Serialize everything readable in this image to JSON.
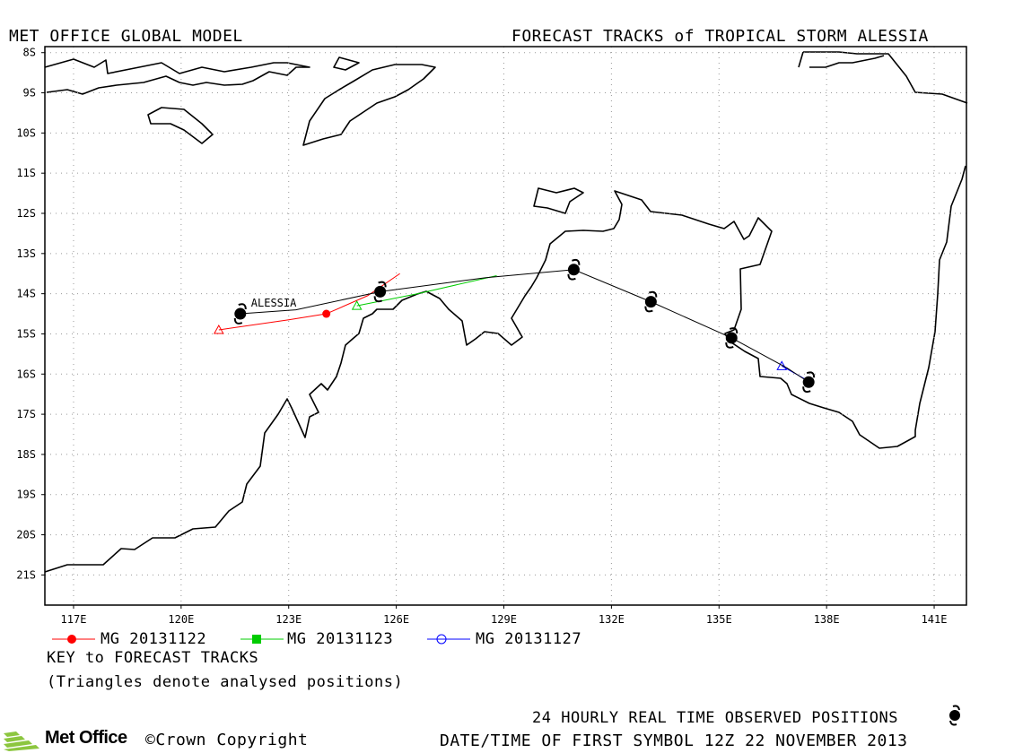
{
  "header": {
    "model_title": "MET OFFICE GLOBAL MODEL",
    "forecast_title": "FORECAST TRACKS of TROPICAL STORM ALESSIA"
  },
  "map": {
    "lon_range": [
      116.2,
      141.9
    ],
    "lat_range": [
      -21.75,
      -7.85
    ],
    "lat_ticks": [
      "8S",
      "9S",
      "10S",
      "11S",
      "12S",
      "13S",
      "14S",
      "15S",
      "16S",
      "17S",
      "18S",
      "19S",
      "20S",
      "21S"
    ],
    "lat_values": [
      -8,
      -9,
      -10,
      -11,
      -12,
      -13,
      -14,
      -15,
      -16,
      -17,
      -18,
      -19,
      -20,
      -21
    ],
    "lon_ticks": [
      "117E",
      "120E",
      "123E",
      "126E",
      "129E",
      "132E",
      "135E",
      "138E",
      "141E"
    ],
    "lon_values": [
      117,
      120,
      123,
      126,
      129,
      132,
      135,
      138,
      141
    ],
    "storm_label": "ALESSIA",
    "grid": "dotted",
    "colors": {
      "observed": "#000000",
      "mg_20131122": "#ff0000",
      "mg_20131123": "#00cc00",
      "mg_20131127": "#0000ff"
    }
  },
  "chart_data": {
    "type": "map-tracks",
    "observed_track": {
      "name": "24 HOURLY REAL TIME OBSERVED POSITIONS",
      "points": [
        [
          121.65,
          -14.5
        ],
        [
          125.55,
          -13.95
        ],
        [
          130.95,
          -13.4
        ],
        [
          133.1,
          -14.2
        ],
        [
          135.35,
          -15.1
        ],
        [
          137.5,
          -16.2
        ]
      ],
      "path": [
        [
          121.65,
          -14.5
        ],
        [
          123.2,
          -14.4
        ],
        [
          125.55,
          -13.95
        ],
        [
          128.5,
          -13.6
        ],
        [
          130.95,
          -13.4
        ],
        [
          133.1,
          -14.2
        ],
        [
          135.35,
          -15.1
        ],
        [
          136.9,
          -15.85
        ],
        [
          137.5,
          -16.2
        ]
      ]
    },
    "forecast_tracks": [
      {
        "name": "MG 20131122",
        "color": "#ff0000",
        "marker": "circle",
        "analysed_position": [
          121.05,
          -14.9
        ],
        "marked_position": [
          124.05,
          -14.5
        ],
        "path": [
          [
            121.05,
            -14.9
          ],
          [
            123.0,
            -14.65
          ],
          [
            124.05,
            -14.5
          ],
          [
            125.2,
            -14.05
          ],
          [
            126.1,
            -13.5
          ]
        ]
      },
      {
        "name": "MG 20131123",
        "color": "#00cc00",
        "marker": "square",
        "analysed_position": [
          124.9,
          -14.3
        ],
        "path": [
          [
            124.9,
            -14.3
          ],
          [
            126.6,
            -14.0
          ],
          [
            128.8,
            -13.55
          ]
        ]
      },
      {
        "name": "MG 20131127",
        "color": "#0000ff",
        "marker": "circle-open",
        "analysed_position": [
          136.75,
          -15.8
        ],
        "path": [
          [
            136.75,
            -15.8
          ],
          [
            137.45,
            -16.15
          ]
        ]
      }
    ]
  },
  "legend": {
    "items": [
      {
        "label": "MG 20131122",
        "color": "#ff0000",
        "marker": "circle"
      },
      {
        "label": "MG 20131123",
        "color": "#00cc00",
        "marker": "square"
      },
      {
        "label": "MG 20131127",
        "color": "#0000ff",
        "marker": "circle-open"
      }
    ],
    "key_label": "KEY to FORECAST TRACKS",
    "note": "(Triangles denote analysed positions)"
  },
  "footer": {
    "observed_label": "24 HOURLY REAL TIME OBSERVED POSITIONS",
    "first_symbol": "DATE/TIME OF FIRST SYMBOL 12Z 22 NOVEMBER 2013",
    "logo_text": "Met Office",
    "copyright": "©Crown Copyright"
  }
}
